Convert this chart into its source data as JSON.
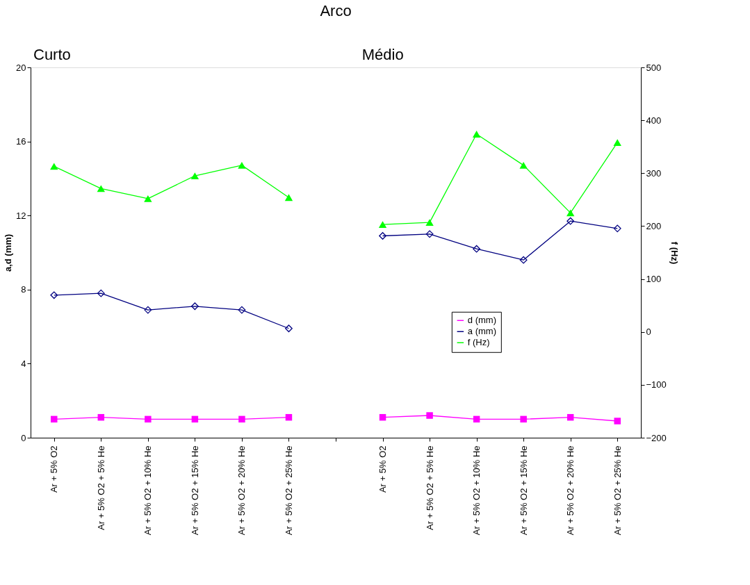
{
  "chart_data": {
    "type": "line",
    "title": "Arco",
    "annotations": [
      "Curto",
      "Médio"
    ],
    "categories": [
      "Ar + 5% O2",
      "Ar + 5% O2 + 5% He",
      "Ar + 5% O2 + 10% He",
      "Ar + 5% O2 + 15% He",
      "Ar + 5% O2 + 20% He",
      "Ar + 5% O2 + 25% He",
      null,
      "Ar + 5% O2",
      "Ar + 5% O2 + 5% He",
      "Ar + 5% O2 + 10% He",
      "Ar + 5% O2 + 15% He",
      "Ar + 5% O2 + 20% He",
      "Ar + 5% O2 + 25% He"
    ],
    "ylabel": "a,d (mm)",
    "y2label": "f (Hz)",
    "ylim": [
      0,
      20
    ],
    "yticks": [
      0,
      4,
      8,
      12,
      16,
      20
    ],
    "y2lim": [
      -200,
      500
    ],
    "y2ticks": [
      -200,
      -100,
      0,
      100,
      200,
      300,
      400,
      500
    ],
    "grid": false,
    "legend": "right",
    "series": [
      {
        "name": "d (mm)",
        "color": "#ff00ff",
        "marker": "square",
        "values": [
          1.0,
          1.1,
          1.0,
          1.0,
          1.0,
          1.1,
          null,
          1.1,
          1.2,
          1.0,
          1.0,
          1.1,
          0.9
        ]
      },
      {
        "name": "a (mm)",
        "color": "#000080",
        "marker": "diamond",
        "values": [
          7.7,
          7.8,
          6.9,
          7.1,
          6.9,
          5.9,
          null,
          10.9,
          11.0,
          10.2,
          9.6,
          11.7,
          11.3
        ]
      },
      {
        "name": "f (Hz)",
        "color": "#00ff00",
        "marker": "triangle",
        "axis": "y2",
        "values": [
          313,
          271,
          252,
          295,
          315,
          254,
          null,
          203,
          207,
          374,
          315,
          225,
          358
        ]
      }
    ]
  }
}
